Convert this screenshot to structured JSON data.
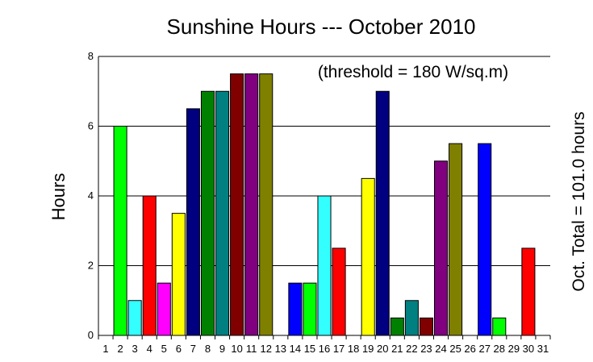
{
  "chart_data": {
    "type": "bar",
    "title": "Sunshine Hours --- October 2010",
    "annotation": "(threshold = 180 W/sq.m)",
    "total_label": "Oct. Total = 101.0 hours",
    "ylabel": "Hours",
    "ylim": [
      0,
      8
    ],
    "yticks": [
      "0",
      "2",
      "4",
      "6",
      "8"
    ],
    "ytick_values": [
      0,
      2,
      4,
      6,
      8
    ],
    "categories": [
      "1",
      "2",
      "3",
      "4",
      "5",
      "6",
      "7",
      "8",
      "9",
      "10",
      "11",
      "12",
      "13",
      "14",
      "15",
      "16",
      "17",
      "18",
      "19",
      "20",
      "21",
      "22",
      "23",
      "24",
      "25",
      "26",
      "27",
      "28",
      "29",
      "30",
      "31"
    ],
    "values": [
      0,
      6.0,
      1.0,
      4.0,
      1.5,
      3.5,
      6.5,
      7.0,
      7.0,
      7.5,
      7.5,
      7.5,
      0,
      1.5,
      1.5,
      4.0,
      2.5,
      0,
      4.5,
      7.0,
      0.5,
      1.0,
      0.5,
      5.0,
      5.5,
      0,
      5.5,
      0.5,
      0,
      2.5,
      0
    ],
    "colors": [
      "#ff0000",
      "#00ff00",
      "#33ffff",
      "#ff0000",
      "#ff00ff",
      "#ffff00",
      "#000080",
      "#008000",
      "#008080",
      "#800000",
      "#800080",
      "#808000",
      "#000080",
      "#0000ff",
      "#00ff00",
      "#33ffff",
      "#ff0000",
      "#ff00ff",
      "#ffff00",
      "#000080",
      "#008000",
      "#008080",
      "#800000",
      "#800080",
      "#808000",
      "#0000ff",
      "#0000ff",
      "#00ff00",
      "#33ffff",
      "#ff0000",
      "#ff00ff"
    ],
    "grid": true,
    "legend": "none"
  }
}
